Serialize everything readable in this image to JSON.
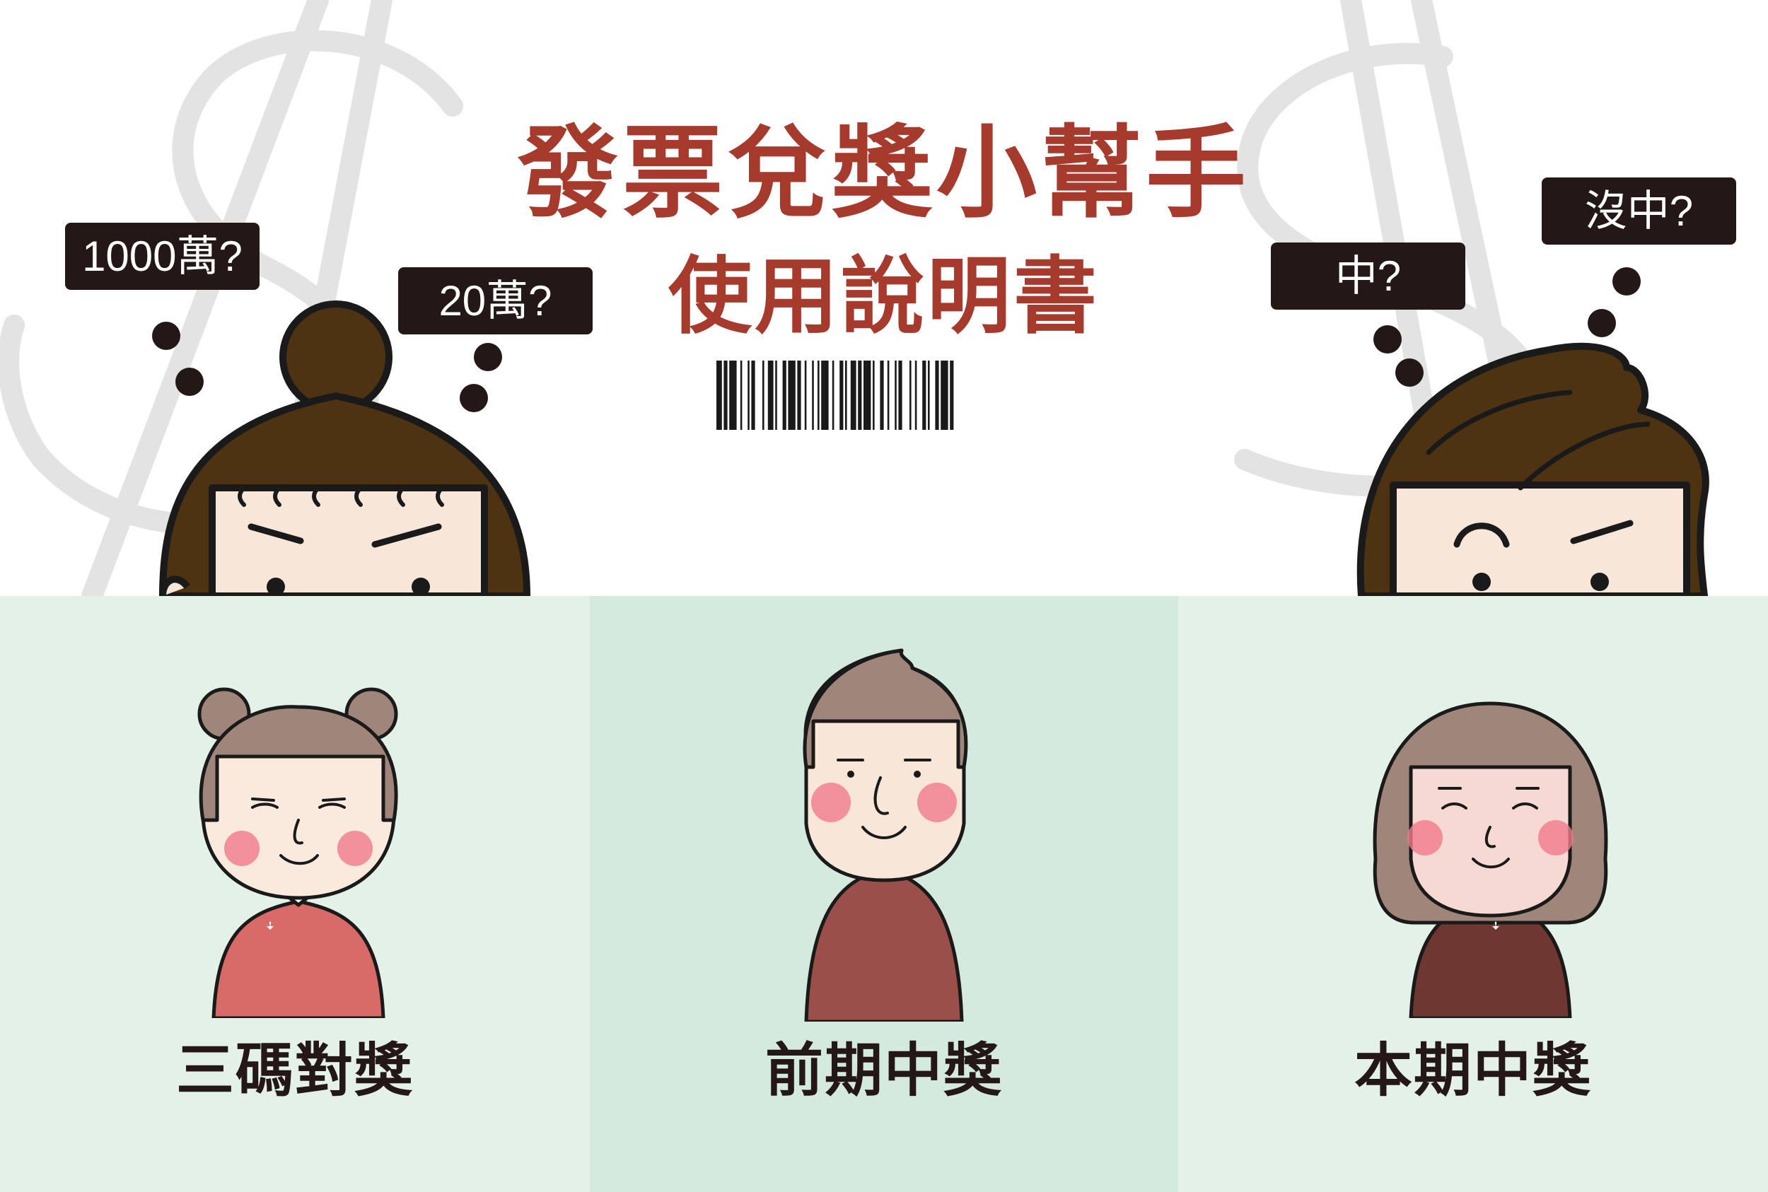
{
  "header": {
    "title": "發票兌獎小幫手",
    "subtitle": "使用說明書"
  },
  "bubbles": {
    "left_1": "1000萬?",
    "left_2": "20萬?",
    "right_1": "中?",
    "right_2": "沒中?"
  },
  "options": [
    {
      "label": "三碼對獎",
      "icon": "girl-bun-avatar"
    },
    {
      "label": "前期中獎",
      "icon": "boy-avatar"
    },
    {
      "label": "本期中獎",
      "icon": "woman-bob-avatar"
    }
  ],
  "colors": {
    "accent": "#a63a2c",
    "panel_light": "#e4f1e7",
    "panel_mid": "#d4eadd",
    "bubble": "#231815",
    "hair_dark": "#4e3312",
    "skin": "#f8e6d8"
  }
}
